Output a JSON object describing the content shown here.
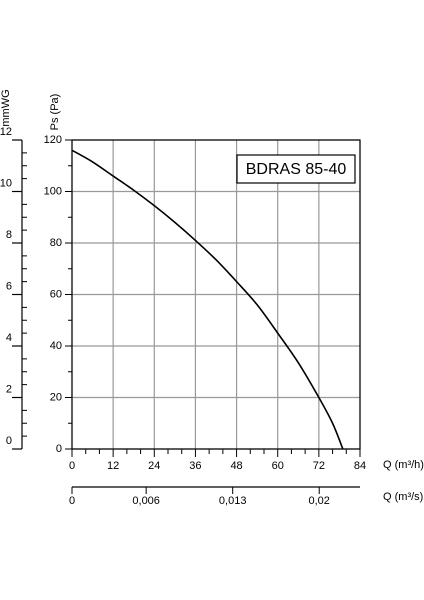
{
  "chart_data": {
    "type": "line",
    "legend_label": "BDRAS 85-40",
    "ylabel": "Ps (Pa)",
    "y2label": "mmWG",
    "xlabel": "Q (m³/h)",
    "x2label": "Q (m³/s)",
    "series": [
      {
        "name": "BDRAS 85-40",
        "color": "#000000",
        "x": [
          0,
          6,
          12,
          18,
          24,
          30,
          36,
          42,
          48,
          54,
          60,
          66,
          72,
          76,
          79
        ],
        "values": [
          116,
          111.5,
          106,
          100.5,
          94.5,
          88,
          81,
          73.5,
          65,
          56,
          45,
          33.5,
          20,
          10,
          0
        ]
      }
    ],
    "xlim": [
      0,
      84
    ],
    "xticks": [
      0,
      12,
      24,
      36,
      48,
      60,
      72,
      84
    ],
    "x_minor_ticks": [
      4,
      8,
      16,
      20,
      28,
      32,
      40,
      44,
      52,
      56,
      64,
      68,
      76,
      80
    ],
    "ylim": [
      0,
      120
    ],
    "yticks": [
      0,
      20,
      40,
      60,
      80,
      100,
      120
    ],
    "y_minor_ticks": [
      10,
      30,
      50,
      70,
      90,
      110
    ],
    "y2lim": [
      0,
      12
    ],
    "y2ticks": [
      0,
      2,
      4,
      6,
      8,
      10,
      12
    ],
    "y2_minor_ticks": [
      0.5,
      1,
      1.5,
      2.5,
      3,
      3.5,
      4.5,
      5,
      5.5,
      6.5,
      7,
      7.5,
      8.5,
      9,
      9.5,
      10.5,
      11,
      11.5
    ],
    "x2lim": [
      0,
      0.0233
    ],
    "x2ticks": [
      0,
      {
        "value": 0.006,
        "label": "0,006"
      },
      {
        "value": 0.013,
        "label": "0,013"
      },
      {
        "value": 0.02,
        "label": "0,02"
      }
    ],
    "grid": true
  }
}
